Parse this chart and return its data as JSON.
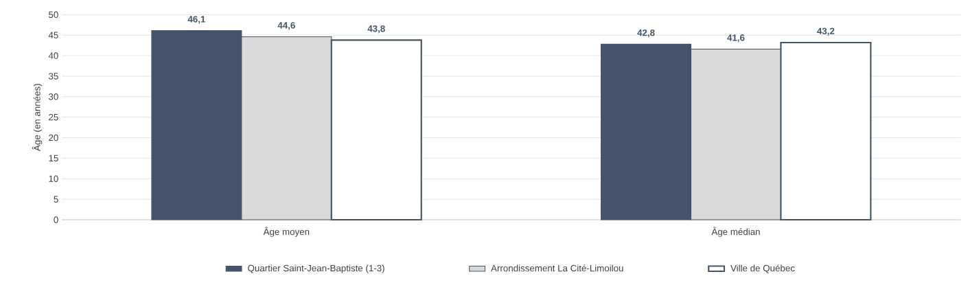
{
  "chart_data": {
    "type": "bar",
    "ylabel": "Âge (en années)",
    "categories": [
      "Âge moyen",
      "Âge médian"
    ],
    "series": [
      {
        "name": "Quartier Saint-Jean-Baptiste (1-3)",
        "color": "#44546a",
        "values": [
          46.1,
          42.8
        ],
        "value_labels": [
          "46,1",
          "42,8"
        ]
      },
      {
        "name": "Arrondissement La Cité-Limoilou",
        "color": "#d9d9d9",
        "values": [
          44.6,
          41.6
        ],
        "value_labels": [
          "44,6",
          "41,6"
        ]
      },
      {
        "name": "Ville de Québec",
        "color": "#44546a",
        "values": [
          43.8,
          43.2
        ],
        "value_labels": [
          "43,8",
          "43,2"
        ]
      }
    ],
    "ylim": [
      0,
      50
    ],
    "yticks": [
      0,
      5,
      10,
      15,
      20,
      25,
      30,
      35,
      40,
      45,
      50
    ],
    "grid": "y",
    "legend": "bottom"
  }
}
